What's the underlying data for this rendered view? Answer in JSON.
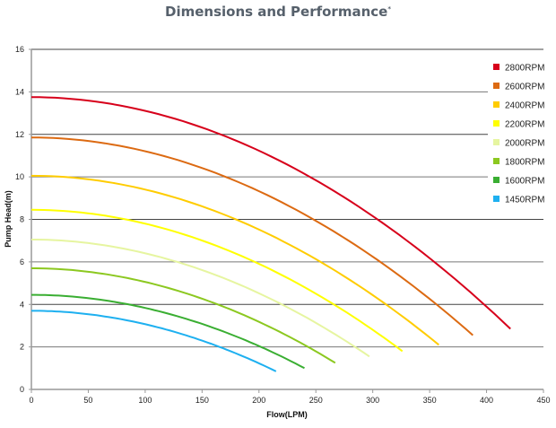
{
  "chart_data": {
    "type": "line",
    "title": "Dimensions and Performance",
    "title_mark": "*",
    "xlabel": "Flow(LPM)",
    "ylabel": "Pump Head(m)",
    "xlim": [
      0,
      450
    ],
    "ylim": [
      0,
      16
    ],
    "xticks": [
      0,
      50,
      100,
      150,
      200,
      250,
      300,
      350,
      400,
      450
    ],
    "yticks": [
      0,
      2,
      4,
      6,
      8,
      10,
      12,
      14,
      16
    ],
    "grid": true,
    "legend_position": "right",
    "series": [
      {
        "name": "2800RPM",
        "color": "#d7001b",
        "shutoff_head": 13.75,
        "end_flow": 421,
        "end_head": 2.85
      },
      {
        "name": "2600RPM",
        "color": "#dc6a12",
        "shutoff_head": 11.85,
        "end_flow": 388,
        "end_head": 2.55
      },
      {
        "name": "2400RPM",
        "color": "#ffcc00",
        "shutoff_head": 10.05,
        "end_flow": 358,
        "end_head": 2.1
      },
      {
        "name": "2200RPM",
        "color": "#ffff00",
        "shutoff_head": 8.45,
        "end_flow": 326,
        "end_head": 1.8
      },
      {
        "name": "2000RPM",
        "color": "#e6f5a0",
        "shutoff_head": 7.05,
        "end_flow": 297,
        "end_head": 1.55
      },
      {
        "name": "1800RPM",
        "color": "#8cc820",
        "shutoff_head": 5.7,
        "end_flow": 267,
        "end_head": 1.25
      },
      {
        "name": "1600RPM",
        "color": "#3aae32",
        "shutoff_head": 4.45,
        "end_flow": 240,
        "end_head": 1.0
      },
      {
        "name": "1450RPM",
        "color": "#1eb0f0",
        "shutoff_head": 3.7,
        "end_flow": 215,
        "end_head": 0.85
      }
    ]
  }
}
